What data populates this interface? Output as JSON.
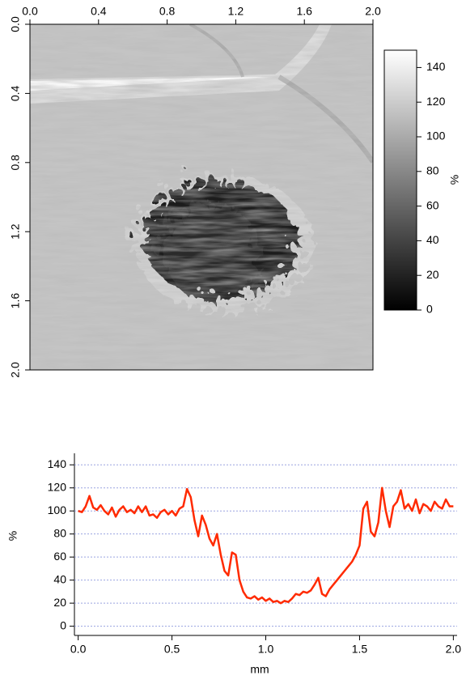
{
  "chart_data": [
    {
      "type": "image",
      "xlim": [
        0,
        2
      ],
      "xticks": [
        {
          "value": 0,
          "label": "0.0"
        },
        0.4,
        0.8,
        1.2,
        1.6,
        {
          "value": 2,
          "label": "2.0"
        }
      ],
      "ylim": [
        2,
        0
      ],
      "yticks": [
        {
          "value": 0,
          "label": "0.0"
        },
        0.4,
        0.8,
        1.2,
        1.6,
        {
          "value": 2,
          "label": "2.0"
        }
      ],
      "colorbar": {
        "label": "%",
        "lim": [
          0,
          150
        ],
        "ticks": [
          0,
          20,
          40,
          60,
          80,
          100,
          120,
          140
        ]
      }
    },
    {
      "type": "line",
      "x_label": "mm",
      "y_label": "%",
      "xlim": [
        -0.02,
        2.02
      ],
      "xticks": [
        {
          "value": 0,
          "label": "0.0"
        },
        0.5,
        {
          "value": 1,
          "label": "1.0"
        },
        1.5,
        {
          "value": 2,
          "label": "2.0"
        }
      ],
      "ylim": [
        -8,
        150
      ],
      "yticks": [
        0,
        20,
        40,
        60,
        80,
        100,
        120,
        140
      ],
      "grid": true,
      "grid_color": "#9aa3e0",
      "color": "#ff2a00",
      "x": [
        0,
        0.02,
        0.04,
        0.06,
        0.08,
        0.1,
        0.12,
        0.14,
        0.16,
        0.18,
        0.2,
        0.22,
        0.24,
        0.26,
        0.28,
        0.3,
        0.32,
        0.34,
        0.36,
        0.38,
        0.4,
        0.42,
        0.44,
        0.46,
        0.48,
        0.5,
        0.52,
        0.54,
        0.56,
        0.58,
        0.6,
        0.62,
        0.64,
        0.66,
        0.68,
        0.7,
        0.72,
        0.74,
        0.76,
        0.78,
        0.8,
        0.82,
        0.84,
        0.86,
        0.88,
        0.9,
        0.92,
        0.94,
        0.96,
        0.98,
        1,
        1.02,
        1.04,
        1.06,
        1.08,
        1.1,
        1.12,
        1.14,
        1.16,
        1.18,
        1.2,
        1.22,
        1.24,
        1.26,
        1.28,
        1.3,
        1.32,
        1.34,
        1.36,
        1.38,
        1.4,
        1.42,
        1.44,
        1.46,
        1.48,
        1.5,
        1.52,
        1.54,
        1.56,
        1.58,
        1.6,
        1.62,
        1.64,
        1.66,
        1.68,
        1.7,
        1.72,
        1.74,
        1.76,
        1.78,
        1.8,
        1.82,
        1.84,
        1.86,
        1.88,
        1.9,
        1.92,
        1.94,
        1.96,
        1.98,
        2
      ],
      "values": [
        100,
        99,
        104,
        113,
        103,
        101,
        105,
        100,
        97,
        103,
        95,
        101,
        104,
        99,
        101,
        98,
        104,
        99,
        104,
        96,
        97,
        94,
        99,
        101,
        97,
        100,
        96,
        102,
        104,
        119,
        112,
        92,
        78,
        96,
        88,
        76,
        70,
        80,
        62,
        48,
        44,
        64,
        62,
        40,
        30,
        25,
        24,
        26,
        23,
        25,
        22,
        24,
        21,
        22,
        20,
        22,
        21,
        24,
        28,
        27,
        30,
        29,
        31,
        36,
        42,
        28,
        26,
        32,
        36,
        40,
        44,
        48,
        52,
        56,
        62,
        70,
        102,
        108,
        82,
        78,
        90,
        120,
        100,
        86,
        104,
        108,
        118,
        102,
        106,
        100,
        110,
        98,
        106,
        104,
        100,
        108,
        104,
        102,
        110,
        104,
        104
      ]
    }
  ]
}
